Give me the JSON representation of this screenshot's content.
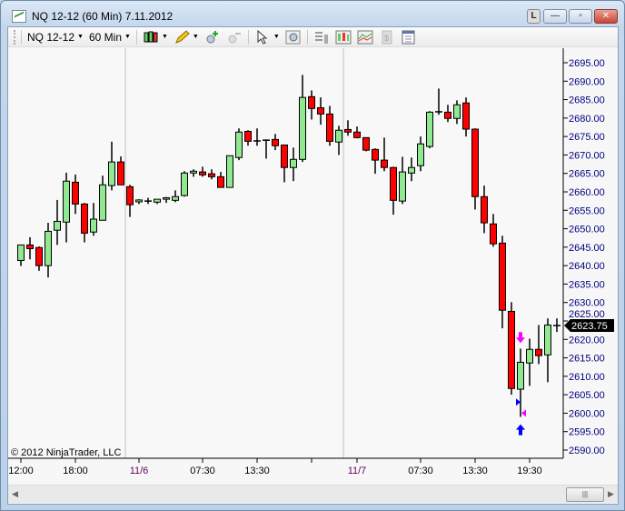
{
  "window": {
    "title": "NQ 12-12 (60 Min)  7.11.2012",
    "buttons": {
      "link": "L",
      "minimize": "—",
      "maximize": "▫",
      "close": "✕"
    }
  },
  "toolbar": {
    "instrument": "NQ 12-12",
    "interval": "60 Min",
    "icons": [
      "candlestick-style-icon",
      "pencil-draw-icon",
      "zoom-in-icon",
      "zoom-out-icon",
      "cursor-pointer-icon",
      "zoom-box-icon",
      "data-box-icon",
      "bar-chart-icon",
      "indicators-icon",
      "strategies-icon",
      "properties-icon"
    ]
  },
  "colors": {
    "up": "#90e890",
    "down": "#ff0000",
    "marker_magenta": "#ff00ff",
    "marker_blue": "#0000ff",
    "axis_text": "#000080"
  },
  "chart_data": {
    "type": "candlestick",
    "y_ticks": [
      "2695.00",
      "2690.00",
      "2685.00",
      "2680.00",
      "2675.00",
      "2670.00",
      "2665.00",
      "2660.00",
      "2655.00",
      "2650.00",
      "2645.00",
      "2640.00",
      "2635.00",
      "2630.00",
      "2625.00",
      "2620.00",
      "2615.00",
      "2610.00",
      "2605.00",
      "2600.00",
      "2595.00",
      "2590.00"
    ],
    "ylim": [
      2590,
      2695
    ],
    "x_labels": [
      {
        "bar": 1,
        "text": "12:00",
        "date": false
      },
      {
        "bar": 7,
        "text": "18:00",
        "date": false
      },
      {
        "bar": 14,
        "text": "11/6",
        "date": true
      },
      {
        "bar": 21,
        "text": "07:30",
        "date": false
      },
      {
        "bar": 27,
        "text": "13:30",
        "date": false
      },
      {
        "bar": 33,
        "text": "",
        "date": false
      },
      {
        "bar": 38,
        "text": "11/7",
        "date": true
      },
      {
        "bar": 45,
        "text": "07:30",
        "date": false
      },
      {
        "bar": 51,
        "text": "13:30",
        "date": false
      },
      {
        "bar": 57,
        "text": "19:30",
        "date": false
      }
    ],
    "session_breaks": [
      12,
      36
    ],
    "last_price": "2623.75",
    "copyright": "© 2012 NinjaTrader, LLC",
    "ohlc": [
      [
        2641.4,
        2645.6,
        2639.9,
        2645.6
      ],
      [
        2645.6,
        2647.7,
        2641.7,
        2644.6
      ],
      [
        2644.9,
        2645.2,
        2638.6,
        2640.0
      ],
      [
        2640.0,
        2651.6,
        2636.8,
        2649.3
      ],
      [
        2649.6,
        2657.8,
        2645.6,
        2652.0
      ],
      [
        2651.8,
        2665.2,
        2646.3,
        2662.9
      ],
      [
        2662.6,
        2664.7,
        2654.0,
        2656.7
      ],
      [
        2656.7,
        2657.0,
        2646.3,
        2648.8
      ],
      [
        2649.1,
        2657.0,
        2648.1,
        2652.6
      ],
      [
        2652.3,
        2664.4,
        2652.3,
        2661.9
      ],
      [
        2661.7,
        2673.6,
        2660.4,
        2668.1
      ],
      [
        2668.1,
        2669.6,
        2661.9,
        2661.9
      ],
      [
        2661.4,
        2661.9,
        2653.2,
        2656.5
      ],
      [
        2657.3,
        2658.0,
        2656.7,
        2657.8
      ],
      [
        2657.5,
        2658.4,
        2656.7,
        2657.4
      ],
      [
        2657.2,
        2658.0,
        2656.7,
        2658.0
      ],
      [
        2658.0,
        2658.6,
        2657.0,
        2658.4
      ],
      [
        2657.7,
        2660.4,
        2657.2,
        2658.7
      ],
      [
        2659.0,
        2665.6,
        2658.7,
        2665.1
      ],
      [
        2665.1,
        2666.1,
        2664.1,
        2665.6
      ],
      [
        2665.4,
        2666.8,
        2664.1,
        2664.6
      ],
      [
        2664.9,
        2666.1,
        2663.4,
        2664.1
      ],
      [
        2664.1,
        2665.4,
        2661.2,
        2661.2
      ],
      [
        2661.2,
        2669.8,
        2661.2,
        2669.8
      ],
      [
        2669.3,
        2677.2,
        2668.6,
        2676.2
      ],
      [
        2676.4,
        2676.7,
        2672.5,
        2673.7
      ],
      [
        2673.8,
        2677.2,
        2672.5,
        2673.6
      ],
      [
        2674.0,
        2674.2,
        2669.0,
        2673.9
      ],
      [
        2674.2,
        2675.7,
        2671.3,
        2672.5
      ],
      [
        2672.7,
        2672.7,
        2662.6,
        2666.6
      ],
      [
        2666.6,
        2672.0,
        2662.9,
        2668.8
      ],
      [
        2668.8,
        2691.7,
        2668.1,
        2685.6
      ],
      [
        2685.8,
        2687.5,
        2679.6,
        2682.6
      ],
      [
        2682.8,
        2685.6,
        2678.2,
        2681.1
      ],
      [
        2681.1,
        2683.3,
        2672.5,
        2673.7
      ],
      [
        2673.5,
        2677.9,
        2670.0,
        2676.7
      ],
      [
        2676.9,
        2679.4,
        2675.2,
        2676.2
      ],
      [
        2676.2,
        2677.7,
        2674.5,
        2674.7
      ],
      [
        2674.7,
        2674.7,
        2671.0,
        2671.3
      ],
      [
        2671.5,
        2671.8,
        2664.9,
        2668.6
      ],
      [
        2668.6,
        2674.7,
        2665.6,
        2666.6
      ],
      [
        2666.6,
        2666.8,
        2653.8,
        2657.7
      ],
      [
        2657.5,
        2669.5,
        2656.7,
        2665.4
      ],
      [
        2665.1,
        2669.3,
        2662.9,
        2666.6
      ],
      [
        2667.1,
        2675.0,
        2665.6,
        2673.0
      ],
      [
        2672.3,
        2681.9,
        2671.8,
        2681.6
      ],
      [
        2681.6,
        2688.0,
        2680.9,
        2681.7
      ],
      [
        2681.6,
        2683.6,
        2678.9,
        2679.9
      ],
      [
        2679.9,
        2684.8,
        2678.4,
        2683.6
      ],
      [
        2684.1,
        2685.6,
        2675.0,
        2677.0
      ],
      [
        2677.0,
        2677.2,
        2655.2,
        2658.7
      ],
      [
        2658.7,
        2661.7,
        2648.8,
        2651.6
      ],
      [
        2651.3,
        2654.0,
        2645.1,
        2645.9
      ],
      [
        2646.1,
        2648.1,
        2623.0,
        2627.9
      ],
      [
        2627.6,
        2630.1,
        2605.0,
        2606.7
      ],
      [
        2606.5,
        2617.5,
        2599.0,
        2613.8
      ],
      [
        2613.6,
        2620.2,
        2607.4,
        2617.3
      ],
      [
        2617.3,
        2623.9,
        2613.3,
        2615.6
      ],
      [
        2615.8,
        2625.7,
        2608.4,
        2623.9
      ],
      [
        2623.75,
        2625.7,
        2622.0,
        2623.75
      ]
    ],
    "markers": [
      {
        "bar": 56,
        "type": "arrow-down",
        "price": 2620,
        "color": "#ff00ff"
      },
      {
        "bar": 56,
        "type": "triangle-right",
        "price": 2603,
        "color": "#0000ff"
      },
      {
        "bar": 56,
        "type": "triangle-left",
        "price": 2600,
        "color": "#ff00ff"
      },
      {
        "bar": 56,
        "type": "arrow-up",
        "price": 2596,
        "color": "#0000ff"
      }
    ]
  }
}
